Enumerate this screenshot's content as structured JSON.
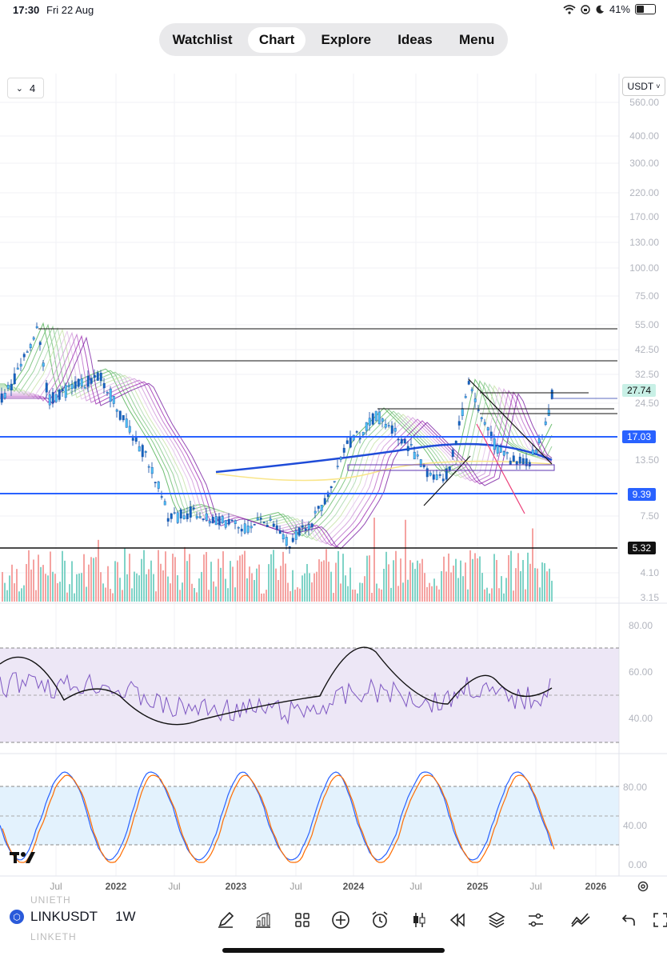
{
  "status": {
    "time": "17:30",
    "date": "Fri 22 Aug",
    "battery": "41%"
  },
  "nav": {
    "tabs": [
      "Watchlist",
      "Chart",
      "Explore",
      "Ideas",
      "Menu"
    ],
    "active": 1
  },
  "chart": {
    "collapse_count": "4",
    "currency": "USDT",
    "price_scale": [
      "560.00",
      "400.00",
      "300.00",
      "220.00",
      "170.00",
      "130.00",
      "100.00",
      "75.00",
      "55.00",
      "42.50",
      "32.50",
      "24.50",
      "13.50",
      "7.50",
      "4.10",
      "3.15"
    ],
    "price_tags": {
      "last": "27.74",
      "level1": "17.03",
      "level2": "9.39",
      "level3": "5.32"
    },
    "rsi_scale": [
      "80.00",
      "60.00",
      "40.00"
    ],
    "stoch_scale": [
      "80.00",
      "40.00",
      "0.00"
    ],
    "time_scale": [
      "Jul",
      "2022",
      "Jul",
      "2023",
      "Jul",
      "2024",
      "Jul",
      "2025",
      "Jul",
      "2026"
    ],
    "colors": {
      "accent": "#2962ff",
      "up": "#26a69a",
      "down": "#ef5350",
      "rsi": "#7e57c2"
    }
  },
  "symbol": {
    "name": "LINKUSDT",
    "interval": "1W",
    "ghost_top": "UNIETH",
    "ghost_bottom": "LINKETH"
  },
  "logo": "TV"
}
